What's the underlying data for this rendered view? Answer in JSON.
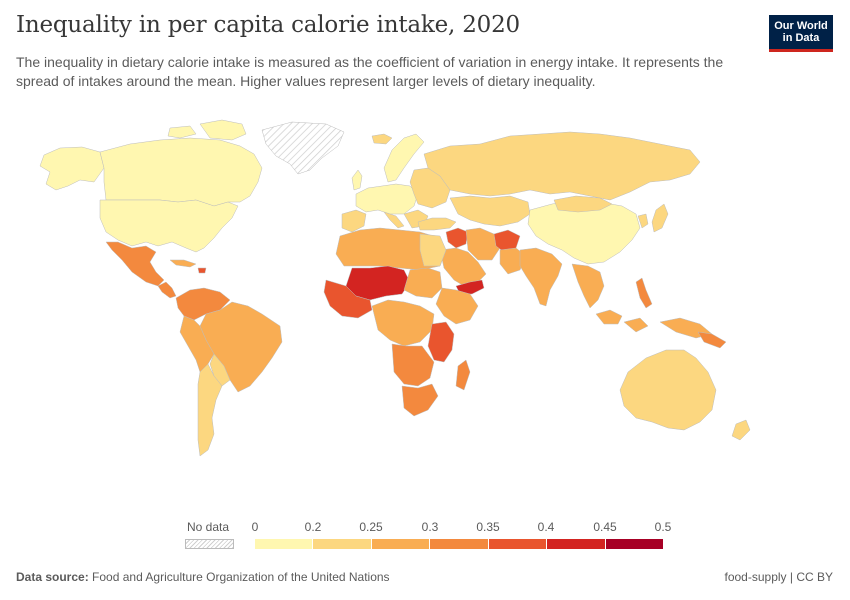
{
  "header": {
    "title": "Inequality in per capita calorie intake, 2020",
    "subtitle": "The inequality in dietary calorie intake is measured as the coefficient of variation in energy intake. It represents the spread of intakes around the mean. Higher values represent larger levels of dietary inequality.",
    "logo_line1": "Our World",
    "logo_line2": "in Data"
  },
  "legend": {
    "no_data_label": "No data",
    "ticks": [
      "0",
      "0.2",
      "0.25",
      "0.3",
      "0.35",
      "0.4",
      "0.45",
      "0.5"
    ],
    "bin_colors": [
      "#fff7b0",
      "#fcd780",
      "#f9ad53",
      "#f3893e",
      "#e9552e",
      "#d32421",
      "#a70025"
    ]
  },
  "footer": {
    "source_label": "Data source:",
    "source_text": "Food and Agriculture Organization of the United Nations",
    "license": "food-supply | CC BY"
  },
  "map_colors": {
    "ocean": "#ffffff",
    "border": "#cfcfcf",
    "no_data_hatch": "#cfcfcf"
  }
}
